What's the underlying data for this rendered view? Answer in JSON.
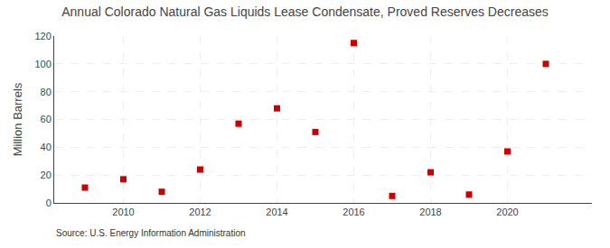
{
  "chart_data": {
    "type": "scatter",
    "title": "Annual Colorado Natural Gas Liquids Lease Condensate, Proved Reserves Decreases",
    "ylabel": "Million Barrels",
    "annotations": [
      "Source: U.S. Energy Information Administration"
    ],
    "x": [
      2009,
      2010,
      2011,
      2012,
      2013,
      2014,
      2015,
      2016,
      2017,
      2018,
      2019,
      2020,
      2021
    ],
    "values": [
      11,
      17,
      8,
      24,
      57,
      68,
      51,
      115,
      5,
      22,
      6,
      37,
      100
    ],
    "color": "#cc0000",
    "marker": "square",
    "xlim": [
      2008.2,
      2022.2
    ],
    "xticks": [
      2010,
      2012,
      2014,
      2016,
      2018,
      2020
    ],
    "ylim": [
      0,
      120
    ],
    "yticks": [
      0,
      20,
      40,
      60,
      80,
      100,
      120
    ],
    "grid": true
  }
}
